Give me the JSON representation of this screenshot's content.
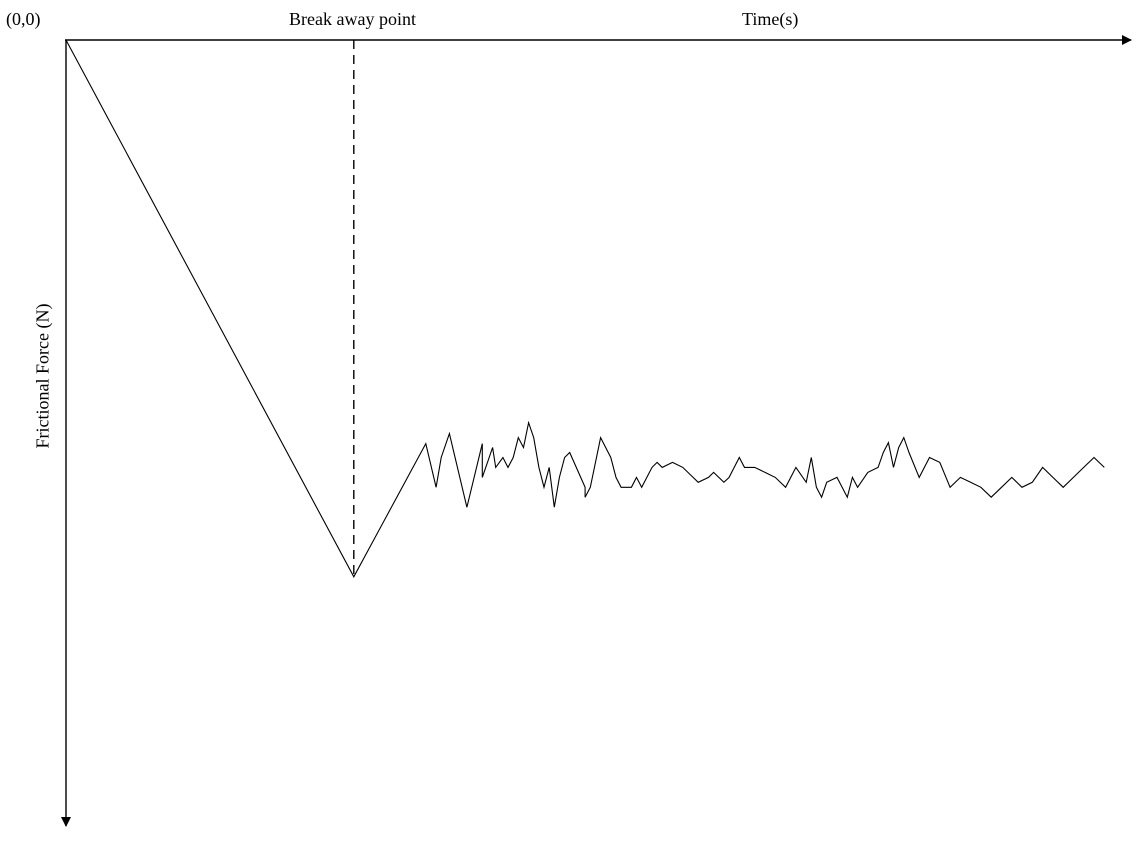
{
  "chart_data": {
    "type": "line",
    "origin_label": "(0,0)",
    "xlabel": "Time(s)",
    "ylabel": "Frictional Force (N)",
    "annotation": "Break away point",
    "breakaway": {
      "x": 28,
      "y": 54
    },
    "grid": false,
    "series": [
      {
        "values": [
          [
            0,
            0
          ],
          [
            28,
            54
          ],
          [
            35,
            40.6
          ],
          [
            36,
            45
          ],
          [
            36.5,
            42
          ],
          [
            37.3,
            39.6
          ],
          [
            39,
            47
          ],
          [
            40.5,
            40.6
          ],
          [
            40.5,
            44
          ],
          [
            41.5,
            41
          ],
          [
            41.8,
            43
          ],
          [
            42.5,
            42
          ],
          [
            43,
            43
          ],
          [
            43.5,
            42
          ],
          [
            44,
            40
          ],
          [
            44.5,
            41
          ],
          [
            45,
            38.5
          ],
          [
            45.5,
            40
          ],
          [
            46,
            43
          ],
          [
            46.5,
            45
          ],
          [
            47,
            43
          ],
          [
            47.5,
            47
          ],
          [
            48,
            44
          ],
          [
            48.5,
            42
          ],
          [
            49,
            41.5
          ],
          [
            50.5,
            45
          ],
          [
            50.5,
            46
          ],
          [
            51,
            45
          ],
          [
            52,
            40
          ],
          [
            53,
            42
          ],
          [
            53.5,
            44
          ],
          [
            54,
            45
          ],
          [
            55,
            45
          ],
          [
            55.5,
            44
          ],
          [
            56,
            45
          ],
          [
            57,
            43
          ],
          [
            57.5,
            42.5
          ],
          [
            58,
            43
          ],
          [
            59,
            42.5
          ],
          [
            60,
            43
          ],
          [
            61,
            44
          ],
          [
            61.5,
            44.5
          ],
          [
            62.5,
            44
          ],
          [
            63,
            43.5
          ],
          [
            64,
            44.5
          ],
          [
            64.5,
            44
          ],
          [
            65,
            43
          ],
          [
            65.5,
            42
          ],
          [
            66,
            43
          ],
          [
            67,
            43
          ],
          [
            68,
            43.5
          ],
          [
            69,
            44
          ],
          [
            70,
            45
          ],
          [
            71,
            43
          ],
          [
            72,
            44.5
          ],
          [
            72.5,
            42
          ],
          [
            73,
            45
          ],
          [
            73.5,
            46
          ],
          [
            74,
            44.5
          ],
          [
            75,
            44
          ],
          [
            76,
            46
          ],
          [
            76.5,
            44
          ],
          [
            77,
            45
          ],
          [
            78,
            43.5
          ],
          [
            79,
            43
          ],
          [
            79.5,
            41.5
          ],
          [
            80,
            40.5
          ],
          [
            80.5,
            43
          ],
          [
            81,
            41
          ],
          [
            81.5,
            40
          ],
          [
            82,
            41.5
          ],
          [
            83,
            44
          ],
          [
            84,
            42
          ],
          [
            85,
            42.5
          ],
          [
            86,
            45
          ],
          [
            87,
            44
          ],
          [
            88,
            44.5
          ],
          [
            89,
            45
          ],
          [
            90,
            46
          ],
          [
            91,
            45
          ],
          [
            92,
            44
          ],
          [
            93,
            45
          ],
          [
            94,
            44.5
          ],
          [
            95,
            43
          ],
          [
            96,
            44
          ],
          [
            97,
            45
          ],
          [
            98,
            44
          ],
          [
            99,
            43
          ],
          [
            100,
            42
          ],
          [
            101,
            43
          ]
        ]
      }
    ]
  }
}
